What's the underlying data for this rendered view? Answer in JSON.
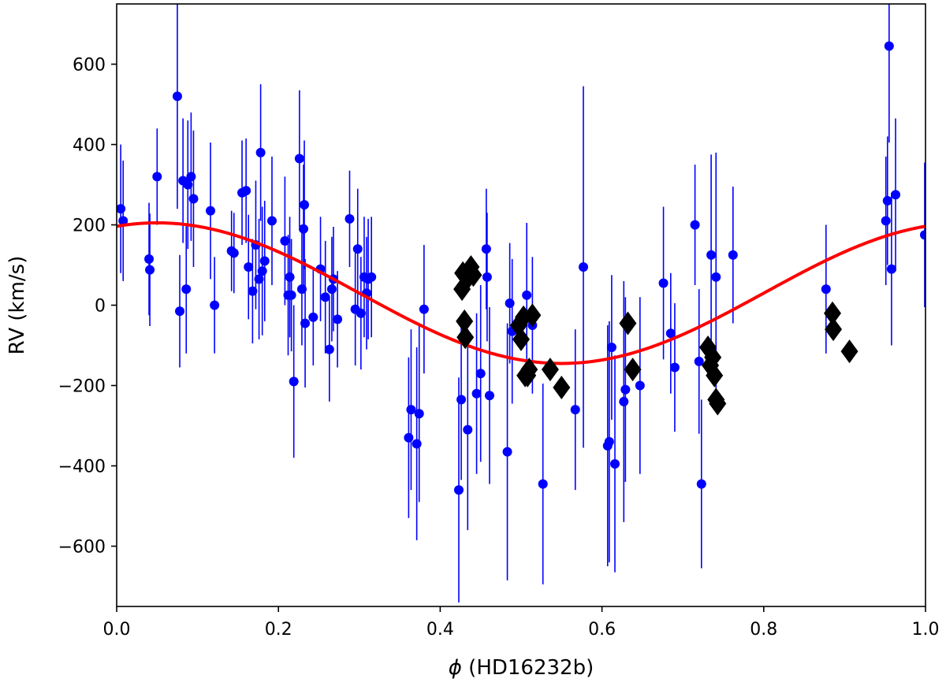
{
  "chart_data": {
    "type": "scatter",
    "title": "",
    "xlabel_symbol": "ϕ",
    "xlabel_text": " (HD16232b)",
    "ylabel": "RV (km/s)",
    "xlim": [
      0.0,
      1.0
    ],
    "ylim": [
      -750,
      750
    ],
    "xticks": [
      0.0,
      0.2,
      0.4,
      0.6,
      0.8,
      1.0
    ],
    "xtick_labels": [
      "0.0",
      "0.2",
      "0.4",
      "0.6",
      "0.8",
      "1.0"
    ],
    "yticks": [
      -600,
      -400,
      -200,
      0,
      200,
      400,
      600
    ],
    "ytick_labels": [
      "−600",
      "−400",
      "−200",
      "0",
      "200",
      "400",
      "600"
    ],
    "grid": false,
    "colors": {
      "points": "#0000ff",
      "model": "#ff0000",
      "diamonds": "#000000"
    },
    "series": [
      {
        "marker": "circle-with-errorbar",
        "points": [
          [
            0.005,
            240,
            160
          ],
          [
            0.008,
            210,
            150
          ],
          [
            0.04,
            115,
            140
          ],
          [
            0.041,
            88,
            140
          ],
          [
            0.05,
            320,
            120
          ],
          [
            0.075,
            520,
            280
          ],
          [
            0.078,
            -15,
            140
          ],
          [
            0.082,
            310,
            155
          ],
          [
            0.086,
            40,
            160
          ],
          [
            0.088,
            300,
            160
          ],
          [
            0.092,
            320,
            160
          ],
          [
            0.095,
            265,
            170
          ],
          [
            0.116,
            235,
            170
          ],
          [
            0.121,
            0,
            120
          ],
          [
            0.142,
            135,
            100
          ],
          [
            0.145,
            130,
            100
          ],
          [
            0.155,
            280,
            130
          ],
          [
            0.16,
            285,
            130
          ],
          [
            0.163,
            95,
            130
          ],
          [
            0.168,
            35,
            130
          ],
          [
            0.172,
            150,
            160
          ],
          [
            0.176,
            65,
            150
          ],
          [
            0.178,
            380,
            170
          ],
          [
            0.18,
            85,
            160
          ],
          [
            0.183,
            110,
            150
          ],
          [
            0.192,
            210,
            160
          ],
          [
            0.208,
            160,
            160
          ],
          [
            0.212,
            25,
            150
          ],
          [
            0.214,
            70,
            150
          ],
          [
            0.216,
            25,
            140
          ],
          [
            0.219,
            -190,
            190
          ],
          [
            0.226,
            365,
            170
          ],
          [
            0.229,
            40,
            140
          ],
          [
            0.231,
            190,
            160
          ],
          [
            0.232,
            250,
            160
          ],
          [
            0.233,
            -45,
            160
          ],
          [
            0.243,
            -30,
            120
          ],
          [
            0.252,
            90,
            130
          ],
          [
            0.258,
            20,
            140
          ],
          [
            0.263,
            -110,
            130
          ],
          [
            0.266,
            40,
            130
          ],
          [
            0.268,
            65,
            130
          ],
          [
            0.273,
            -35,
            120
          ],
          [
            0.288,
            215,
            120
          ],
          [
            0.295,
            -10,
            140
          ],
          [
            0.298,
            140,
            150
          ],
          [
            0.302,
            -20,
            140
          ],
          [
            0.306,
            70,
            150
          ],
          [
            0.309,
            30,
            140
          ],
          [
            0.311,
            65,
            150
          ],
          [
            0.315,
            70,
            150
          ],
          [
            0.361,
            -330,
            200
          ],
          [
            0.364,
            -260,
            200
          ],
          [
            0.371,
            -345,
            240
          ],
          [
            0.374,
            -270,
            220
          ],
          [
            0.38,
            -10,
            160
          ],
          [
            0.423,
            -460,
            280
          ],
          [
            0.426,
            -235,
            200
          ],
          [
            0.434,
            -310,
            250
          ],
          [
            0.445,
            -220,
            200
          ],
          [
            0.45,
            -170,
            220
          ],
          [
            0.457,
            140,
            150
          ],
          [
            0.458,
            70,
            160
          ],
          [
            0.461,
            -225,
            220
          ],
          [
            0.483,
            -365,
            320
          ],
          [
            0.486,
            5,
            150
          ],
          [
            0.489,
            -65,
            180
          ],
          [
            0.507,
            25,
            180
          ],
          [
            0.514,
            -50,
            170
          ],
          [
            0.527,
            -445,
            250
          ],
          [
            0.567,
            -260,
            200
          ],
          [
            0.577,
            95,
            450
          ],
          [
            0.607,
            -350,
            300
          ],
          [
            0.609,
            -340,
            300
          ],
          [
            0.612,
            -105,
            180
          ],
          [
            0.616,
            -395,
            270
          ],
          [
            0.627,
            -240,
            300
          ],
          [
            0.629,
            -210,
            230
          ],
          [
            0.647,
            -200,
            220
          ],
          [
            0.676,
            55,
            190
          ],
          [
            0.685,
            -70,
            150
          ],
          [
            0.69,
            -155,
            160
          ],
          [
            0.715,
            200,
            150
          ],
          [
            0.72,
            -140,
            180
          ],
          [
            0.723,
            -445,
            210
          ],
          [
            0.735,
            125,
            250
          ],
          [
            0.741,
            70,
            310
          ],
          [
            0.762,
            125,
            170
          ],
          [
            0.877,
            40,
            160
          ],
          [
            0.951,
            210,
            160
          ],
          [
            0.953,
            260,
            160
          ],
          [
            0.955,
            645,
            240
          ],
          [
            0.958,
            90,
            190
          ],
          [
            0.963,
            275,
            190
          ],
          [
            0.999,
            175,
            180
          ]
        ]
      },
      {
        "marker": "diamond",
        "points": [
          [
            0.427,
            40
          ],
          [
            0.428,
            80
          ],
          [
            0.43,
            -40
          ],
          [
            0.431,
            -80
          ],
          [
            0.435,
            70
          ],
          [
            0.438,
            95
          ],
          [
            0.441,
            75
          ],
          [
            0.497,
            -50
          ],
          [
            0.5,
            -85
          ],
          [
            0.503,
            -30
          ],
          [
            0.505,
            -175
          ],
          [
            0.508,
            -175
          ],
          [
            0.51,
            -160
          ],
          [
            0.514,
            -25
          ],
          [
            0.536,
            -160
          ],
          [
            0.55,
            -205
          ],
          [
            0.632,
            -45
          ],
          [
            0.638,
            -160
          ],
          [
            0.731,
            -105
          ],
          [
            0.734,
            -150
          ],
          [
            0.737,
            -130
          ],
          [
            0.739,
            -175
          ],
          [
            0.741,
            -235
          ],
          [
            0.743,
            -245
          ],
          [
            0.885,
            -20
          ],
          [
            0.886,
            -60
          ],
          [
            0.906,
            -115
          ]
        ]
      }
    ],
    "model": {
      "type": "sinusoid",
      "K": 175,
      "offset": 30,
      "phase_of_max": 0.05
    }
  }
}
